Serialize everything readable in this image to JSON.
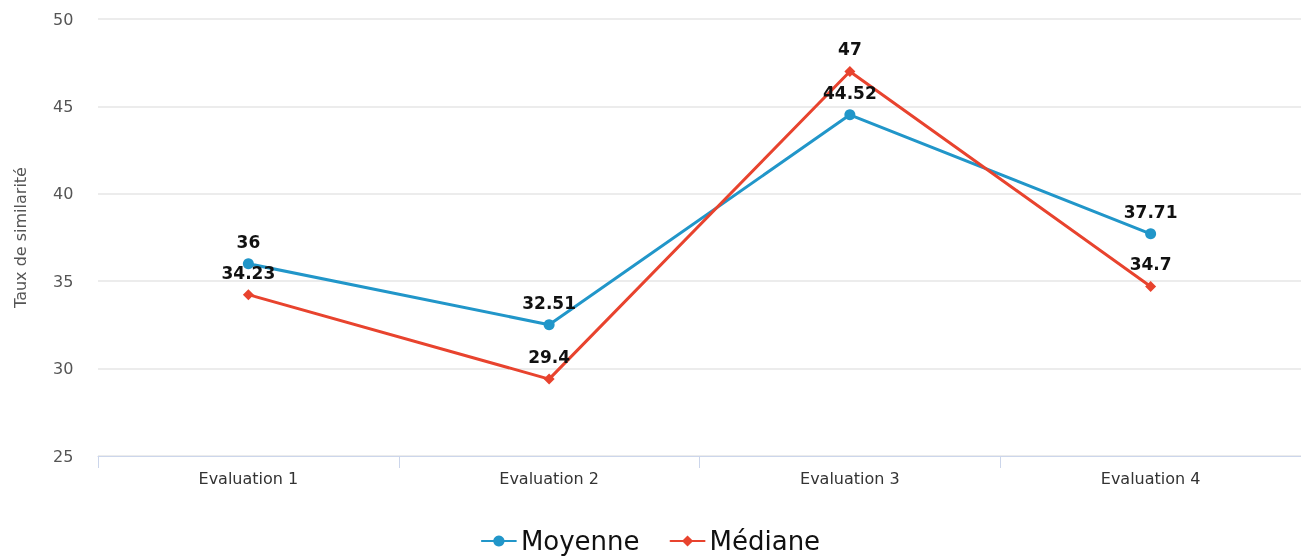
{
  "chart_data": {
    "type": "line",
    "ylabel": "Taux de similarité",
    "categories": [
      "Evaluation 1",
      "Evaluation 2",
      "Evaluation 3",
      "Evaluation 4"
    ],
    "series": [
      {
        "name": "Moyenne",
        "color": "#2196c9",
        "marker": "circle",
        "values": [
          36,
          32.51,
          44.52,
          37.71
        ]
      },
      {
        "name": "Médiane",
        "color": "#e8432e",
        "marker": "diamond",
        "values": [
          34.23,
          29.4,
          47,
          34.7
        ]
      }
    ],
    "ylim": [
      25,
      50
    ],
    "yticks": [
      25,
      30,
      35,
      40,
      45,
      50
    ],
    "grid": "y",
    "legend": "bottom",
    "data_labels": true,
    "line_style": "solid"
  }
}
